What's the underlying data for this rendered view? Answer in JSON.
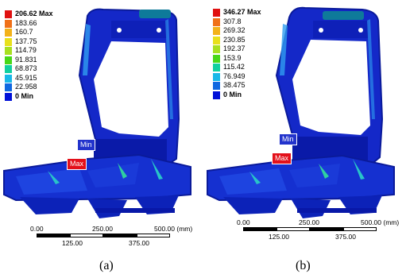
{
  "panels": [
    {
      "caption": "(a)",
      "legend": [
        {
          "label": "206.62 Max",
          "color": "#e01010",
          "strong": true
        },
        {
          "label": "183.66",
          "color": "#f07018"
        },
        {
          "label": "160.7",
          "color": "#f3b21a"
        },
        {
          "label": "137.75",
          "color": "#e8e01c"
        },
        {
          "label": "114.79",
          "color": "#a8e020"
        },
        {
          "label": "91.831",
          "color": "#48d818"
        },
        {
          "label": "68.873",
          "color": "#10d0a0"
        },
        {
          "label": "45.915",
          "color": "#18b8e8"
        },
        {
          "label": "22.958",
          "color": "#1068e0"
        },
        {
          "label": "0 Min",
          "color": "#0010d8",
          "strong": true
        }
      ],
      "min_tag": "Min",
      "max_tag": "Max",
      "scale": {
        "top_labels": [
          "0.00",
          "250.00",
          "500.00 (mm)"
        ],
        "bottom_labels": [
          "125.00",
          "375.00"
        ]
      }
    },
    {
      "caption": "(b)",
      "legend": [
        {
          "label": "346.27 Max",
          "color": "#e01010",
          "strong": true
        },
        {
          "label": "307.8",
          "color": "#f07018"
        },
        {
          "label": "269.32",
          "color": "#f3b21a"
        },
        {
          "label": "230.85",
          "color": "#e8e01c"
        },
        {
          "label": "192.37",
          "color": "#a8e020"
        },
        {
          "label": "153.9",
          "color": "#48d818"
        },
        {
          "label": "115.42",
          "color": "#10d0a0"
        },
        {
          "label": "76.949",
          "color": "#18b8e8"
        },
        {
          "label": "38.475",
          "color": "#1068e0"
        },
        {
          "label": "0 Min",
          "color": "#0010d8",
          "strong": true
        }
      ],
      "min_tag": "Min",
      "max_tag": "Max",
      "scale": {
        "top_labels": [
          "0.00",
          "250.00",
          "500.00 (mm)"
        ],
        "bottom_labels": [
          "125.00",
          "375.00"
        ]
      }
    }
  ]
}
